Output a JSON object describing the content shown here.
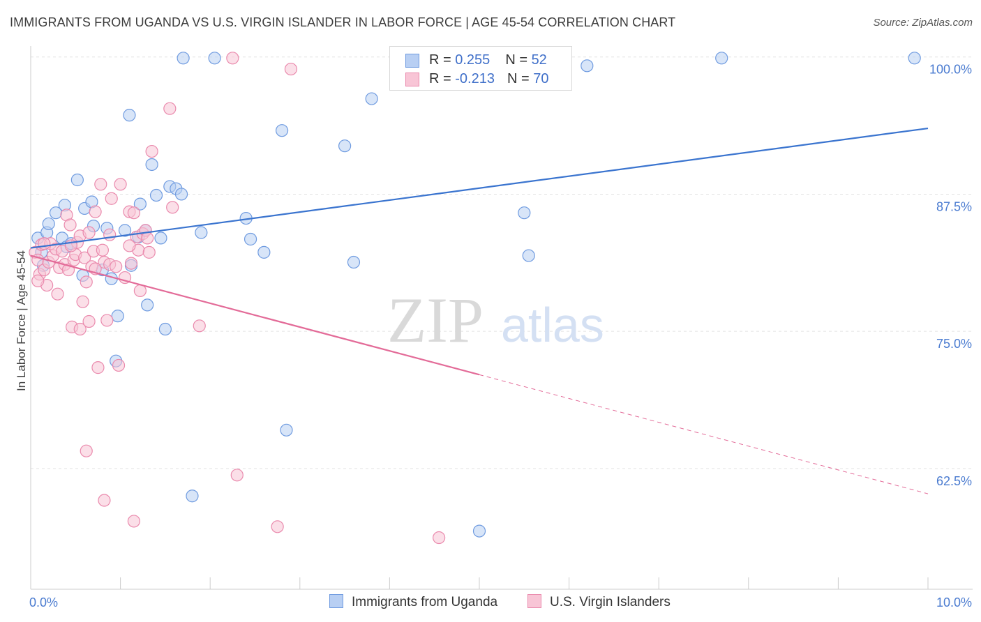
{
  "title": "IMMIGRANTS FROM UGANDA VS U.S. VIRGIN ISLANDER IN LABOR FORCE | AGE 45-54 CORRELATION CHART",
  "source": "Source: ZipAtlas.com",
  "watermark": {
    "zip": "ZIP",
    "atlas": "atlas"
  },
  "colors": {
    "blue_fill": "#b8cff3",
    "blue_stroke": "#6f9be0",
    "blue_line": "#3a74cf",
    "pink_fill": "#f8c5d6",
    "pink_stroke": "#ea8aad",
    "pink_line": "#e36b98",
    "grid": "#e2e2e2",
    "axis": "#cccccc"
  },
  "legend_top": [
    {
      "r_label": "R = ",
      "r_value": "0.255",
      "n_label": "N = ",
      "n_value": "52"
    },
    {
      "r_label": "R = ",
      "r_value": "-0.213",
      "n_label": "N = ",
      "n_value": "70"
    }
  ],
  "chart_data": {
    "type": "scatter",
    "title": "IMMIGRANTS FROM UGANDA VS U.S. VIRGIN ISLANDER IN LABOR FORCE | AGE 45-54 CORRELATION CHART",
    "xlabel": "",
    "ylabel": "In Labor Force | Age 45-54",
    "xlim": [
      0,
      10
    ],
    "ylim": [
      51.5,
      101.0
    ],
    "x_tick_labels": [
      "0.0%",
      "10.0%"
    ],
    "x_tick_values": [
      0,
      10
    ],
    "y_tick_labels": [
      "100.0%",
      "87.5%",
      "75.0%",
      "62.5%"
    ],
    "y_tick_values": [
      100,
      87.5,
      75,
      62.5
    ],
    "grid": true,
    "legend": "bottom-center",
    "series": [
      {
        "name": "Immigrants from Uganda",
        "color": "blue",
        "r": 0.255,
        "n": 52,
        "trend": {
          "x": [
            0,
            10
          ],
          "y": [
            82.6,
            93.5
          ],
          "dashed_from": null
        },
        "points": [
          [
            0.08,
            83.5
          ],
          [
            0.12,
            82.2
          ],
          [
            0.18,
            84.0
          ],
          [
            0.14,
            81.0
          ],
          [
            0.2,
            84.8
          ],
          [
            0.28,
            85.8
          ],
          [
            0.35,
            83.5
          ],
          [
            0.4,
            82.7
          ],
          [
            0.38,
            86.5
          ],
          [
            0.45,
            83.0
          ],
          [
            0.52,
            88.8
          ],
          [
            0.6,
            86.2
          ],
          [
            0.58,
            80.1
          ],
          [
            0.68,
            86.8
          ],
          [
            0.7,
            84.6
          ],
          [
            0.8,
            80.6
          ],
          [
            0.85,
            84.4
          ],
          [
            0.9,
            79.8
          ],
          [
            0.95,
            72.3
          ],
          [
            0.97,
            76.4
          ],
          [
            1.05,
            84.2
          ],
          [
            1.1,
            94.7
          ],
          [
            1.12,
            81.0
          ],
          [
            1.2,
            83.6
          ],
          [
            1.22,
            86.6
          ],
          [
            1.3,
            77.4
          ],
          [
            1.28,
            84.2
          ],
          [
            1.35,
            90.2
          ],
          [
            1.4,
            87.4
          ],
          [
            1.45,
            83.5
          ],
          [
            1.5,
            75.2
          ],
          [
            1.55,
            88.2
          ],
          [
            1.62,
            88.0
          ],
          [
            1.68,
            87.5
          ],
          [
            1.7,
            99.9
          ],
          [
            1.8,
            60.0
          ],
          [
            1.9,
            84.0
          ],
          [
            2.05,
            99.9
          ],
          [
            2.4,
            85.3
          ],
          [
            2.45,
            83.4
          ],
          [
            2.6,
            82.2
          ],
          [
            2.8,
            93.3
          ],
          [
            2.85,
            66.0
          ],
          [
            3.5,
            91.9
          ],
          [
            3.6,
            81.3
          ],
          [
            3.8,
            96.2
          ],
          [
            5.0,
            56.8
          ],
          [
            5.5,
            85.8
          ],
          [
            5.55,
            81.9
          ],
          [
            6.2,
            99.2
          ],
          [
            7.7,
            99.9
          ],
          [
            9.85,
            99.9
          ]
        ]
      },
      {
        "name": "U.S. Virgin Islanders",
        "color": "pink",
        "r": -0.213,
        "n": 70,
        "trend": {
          "x": [
            0,
            10
          ],
          "y": [
            81.9,
            60.2
          ],
          "dashed_from": 5.0
        },
        "points": [
          [
            0.05,
            82.2
          ],
          [
            0.08,
            81.5
          ],
          [
            0.1,
            80.2
          ],
          [
            0.12,
            82.9
          ],
          [
            0.15,
            80.6
          ],
          [
            0.18,
            79.2
          ],
          [
            0.2,
            81.3
          ],
          [
            0.22,
            83.0
          ],
          [
            0.25,
            81.9
          ],
          [
            0.28,
            82.5
          ],
          [
            0.3,
            78.4
          ],
          [
            0.32,
            80.8
          ],
          [
            0.35,
            82.3
          ],
          [
            0.38,
            81.1
          ],
          [
            0.4,
            85.6
          ],
          [
            0.42,
            80.6
          ],
          [
            0.44,
            84.7
          ],
          [
            0.46,
            75.4
          ],
          [
            0.48,
            81.5
          ],
          [
            0.5,
            82.0
          ],
          [
            0.52,
            83.1
          ],
          [
            0.55,
            75.2
          ],
          [
            0.58,
            77.7
          ],
          [
            0.6,
            81.7
          ],
          [
            0.62,
            79.5
          ],
          [
            0.65,
            75.9
          ],
          [
            0.68,
            80.9
          ],
          [
            0.7,
            82.3
          ],
          [
            0.72,
            85.9
          ],
          [
            0.75,
            71.7
          ],
          [
            0.78,
            88.4
          ],
          [
            0.8,
            82.4
          ],
          [
            0.82,
            81.3
          ],
          [
            0.85,
            76.0
          ],
          [
            0.88,
            81.1
          ],
          [
            0.9,
            87.1
          ],
          [
            0.95,
            80.9
          ],
          [
            0.98,
            71.9
          ],
          [
            1.0,
            88.4
          ],
          [
            1.05,
            79.9
          ],
          [
            1.1,
            85.9
          ],
          [
            1.12,
            81.2
          ],
          [
            1.15,
            57.7
          ],
          [
            1.18,
            83.6
          ],
          [
            1.2,
            82.4
          ],
          [
            1.22,
            78.7
          ],
          [
            1.25,
            83.9
          ],
          [
            1.28,
            84.2
          ],
          [
            1.3,
            83.5
          ],
          [
            1.32,
            82.2
          ],
          [
            1.35,
            91.4
          ],
          [
            1.55,
            95.3
          ],
          [
            1.58,
            86.3
          ],
          [
            1.88,
            75.5
          ],
          [
            2.25,
            99.9
          ],
          [
            2.3,
            61.9
          ],
          [
            2.75,
            57.2
          ],
          [
            2.9,
            98.9
          ],
          [
            4.55,
            56.2
          ],
          [
            0.62,
            64.1
          ],
          [
            0.82,
            59.6
          ],
          [
            0.08,
            79.6
          ],
          [
            0.15,
            83.0
          ],
          [
            0.45,
            82.8
          ],
          [
            0.55,
            83.7
          ],
          [
            0.65,
            84.0
          ],
          [
            0.72,
            80.7
          ],
          [
            0.88,
            83.8
          ],
          [
            1.1,
            82.8
          ],
          [
            1.15,
            85.8
          ]
        ]
      }
    ]
  }
}
